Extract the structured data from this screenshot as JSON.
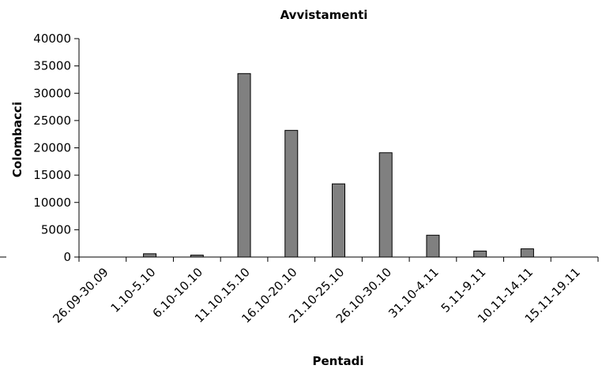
{
  "chart_data": {
    "type": "bar",
    "title": "Avvistamenti",
    "xlabel": "Pentadi",
    "ylabel": "Colombacci",
    "categories": [
      "26.09-30.09",
      "1.10-5.10",
      "6.10-10.10",
      "11.10.15.10",
      "16.10-20.10",
      "21.10-25.10",
      "26.10-30.10",
      "31.10-4.11",
      "5.11-9.11",
      "10.11-14.11",
      "15.11-19.11"
    ],
    "values": [
      0,
      600,
      350,
      33600,
      23200,
      13400,
      19100,
      4000,
      1100,
      1500,
      0
    ],
    "ylim": [
      0,
      40000
    ],
    "yticks": [
      0,
      5000,
      10000,
      15000,
      20000,
      25000,
      30000,
      35000,
      40000
    ],
    "bar_color": "#808080",
    "grid": false,
    "legend": "none"
  }
}
